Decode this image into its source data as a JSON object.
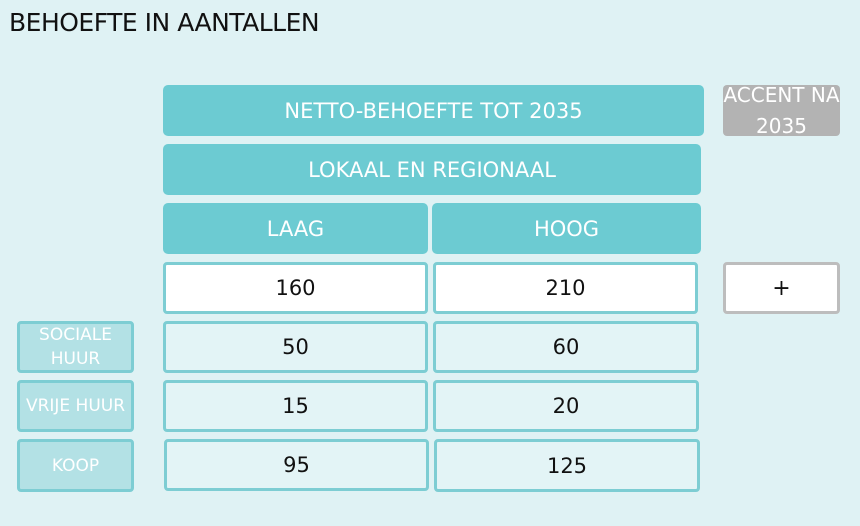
{
  "title": "BEHOEFTE IN AANTALLEN",
  "header": {
    "netto": "NETTO-BEHOEFTE TOT 2035",
    "lokaal": "LOKAAL EN REGIONAAL",
    "laag": "LAAG",
    "hoog": "HOOG",
    "accent": "ACCENT NA 2035"
  },
  "plus_label": "+",
  "rows": [
    {
      "label": "",
      "laag": "160",
      "hoog": "210"
    },
    {
      "label": "SOCIALE HUUR",
      "laag": "50",
      "hoog": "60"
    },
    {
      "label": "VRIJE HUUR",
      "laag": "15",
      "hoog": "20"
    },
    {
      "label": "KOOP",
      "laag": "95",
      "hoog": "125"
    }
  ],
  "colors": {
    "teal": "#6ccbd2",
    "background": "#dff2f4",
    "grey": "#b3b3b3"
  }
}
